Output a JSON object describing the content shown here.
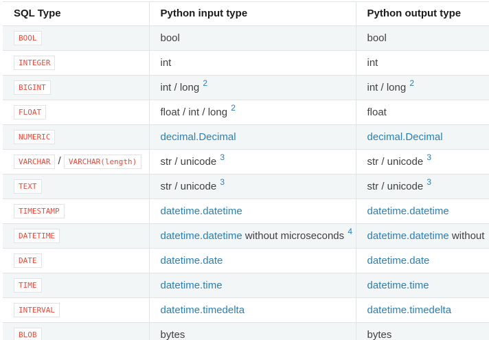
{
  "colors": {
    "link_blue": "#2980b9",
    "code_red": "#e74c3c",
    "border_gray": "#e1e4e5",
    "stripe_gray": "#f3f6f6",
    "body_text": "#404040",
    "header_text": "#1b1b1b"
  },
  "table": {
    "columns": [
      "SQL Type",
      "Python input type",
      "Python output type"
    ],
    "cell_names": [
      "cell-sql-type",
      "cell-python-input-type",
      "cell-python-output-type"
    ],
    "rows": [
      {
        "name": "bool",
        "cells": [
          [
            {
              "kind": "code",
              "text": "BOOL"
            }
          ],
          [
            {
              "kind": "plain",
              "text": "bool"
            }
          ],
          [
            {
              "kind": "plain",
              "text": "bool"
            }
          ]
        ]
      },
      {
        "name": "integer",
        "cells": [
          [
            {
              "kind": "code",
              "text": "INTEGER"
            }
          ],
          [
            {
              "kind": "plain",
              "text": "int"
            }
          ],
          [
            {
              "kind": "plain",
              "text": "int"
            }
          ]
        ]
      },
      {
        "name": "bigint",
        "cells": [
          [
            {
              "kind": "code",
              "text": "BIGINT"
            }
          ],
          [
            {
              "kind": "plain",
              "text": "int / long "
            },
            {
              "kind": "sup",
              "text": "2"
            }
          ],
          [
            {
              "kind": "plain",
              "text": "int / long "
            },
            {
              "kind": "sup",
              "text": "2"
            }
          ]
        ]
      },
      {
        "name": "float",
        "cells": [
          [
            {
              "kind": "code",
              "text": "FLOAT"
            }
          ],
          [
            {
              "kind": "plain",
              "text": "float / int / long "
            },
            {
              "kind": "sup",
              "text": "2"
            }
          ],
          [
            {
              "kind": "plain",
              "text": "float"
            }
          ]
        ]
      },
      {
        "name": "numeric",
        "cells": [
          [
            {
              "kind": "code",
              "text": "NUMERIC"
            }
          ],
          [
            {
              "kind": "link",
              "text": "decimal.Decimal"
            }
          ],
          [
            {
              "kind": "link",
              "text": "decimal.Decimal"
            }
          ]
        ]
      },
      {
        "name": "varchar",
        "cells": [
          [
            {
              "kind": "code",
              "text": "VARCHAR"
            },
            {
              "kind": "plain",
              "text": " / "
            },
            {
              "kind": "code",
              "text": "VARCHAR(length)"
            }
          ],
          [
            {
              "kind": "plain",
              "text": "str / unicode "
            },
            {
              "kind": "sup",
              "text": "3"
            }
          ],
          [
            {
              "kind": "plain",
              "text": "str / unicode "
            },
            {
              "kind": "sup",
              "text": "3"
            }
          ]
        ]
      },
      {
        "name": "text",
        "cells": [
          [
            {
              "kind": "code",
              "text": "TEXT"
            }
          ],
          [
            {
              "kind": "plain",
              "text": "str / unicode "
            },
            {
              "kind": "sup",
              "text": "3"
            }
          ],
          [
            {
              "kind": "plain",
              "text": "str / unicode "
            },
            {
              "kind": "sup",
              "text": "3"
            }
          ]
        ]
      },
      {
        "name": "timestamp",
        "cells": [
          [
            {
              "kind": "code",
              "text": "TIMESTAMP"
            }
          ],
          [
            {
              "kind": "link",
              "text": "datetime.datetime"
            }
          ],
          [
            {
              "kind": "link",
              "text": "datetime.datetime"
            }
          ]
        ]
      },
      {
        "name": "datetime",
        "cells": [
          [
            {
              "kind": "code",
              "text": "DATETIME"
            }
          ],
          [
            {
              "kind": "link",
              "text": "datetime.datetime"
            },
            {
              "kind": "plain",
              "text": " without microseconds "
            },
            {
              "kind": "sup",
              "text": "4"
            }
          ],
          [
            {
              "kind": "link",
              "text": "datetime.datetime"
            },
            {
              "kind": "plain",
              "text": " without"
            }
          ]
        ]
      },
      {
        "name": "date",
        "cells": [
          [
            {
              "kind": "code",
              "text": "DATE"
            }
          ],
          [
            {
              "kind": "link",
              "text": "datetime.date"
            }
          ],
          [
            {
              "kind": "link",
              "text": "datetime.date"
            }
          ]
        ]
      },
      {
        "name": "time",
        "cells": [
          [
            {
              "kind": "code",
              "text": "TIME"
            }
          ],
          [
            {
              "kind": "link",
              "text": "datetime.time"
            }
          ],
          [
            {
              "kind": "link",
              "text": "datetime.time"
            }
          ]
        ]
      },
      {
        "name": "interval",
        "cells": [
          [
            {
              "kind": "code",
              "text": "INTERVAL"
            }
          ],
          [
            {
              "kind": "link",
              "text": "datetime.timedelta"
            }
          ],
          [
            {
              "kind": "link",
              "text": "datetime.timedelta"
            }
          ]
        ]
      },
      {
        "name": "blob",
        "cells": [
          [
            {
              "kind": "code",
              "text": "BLOB"
            }
          ],
          [
            {
              "kind": "plain",
              "text": "bytes"
            }
          ],
          [
            {
              "kind": "plain",
              "text": "bytes"
            }
          ]
        ]
      }
    ]
  }
}
